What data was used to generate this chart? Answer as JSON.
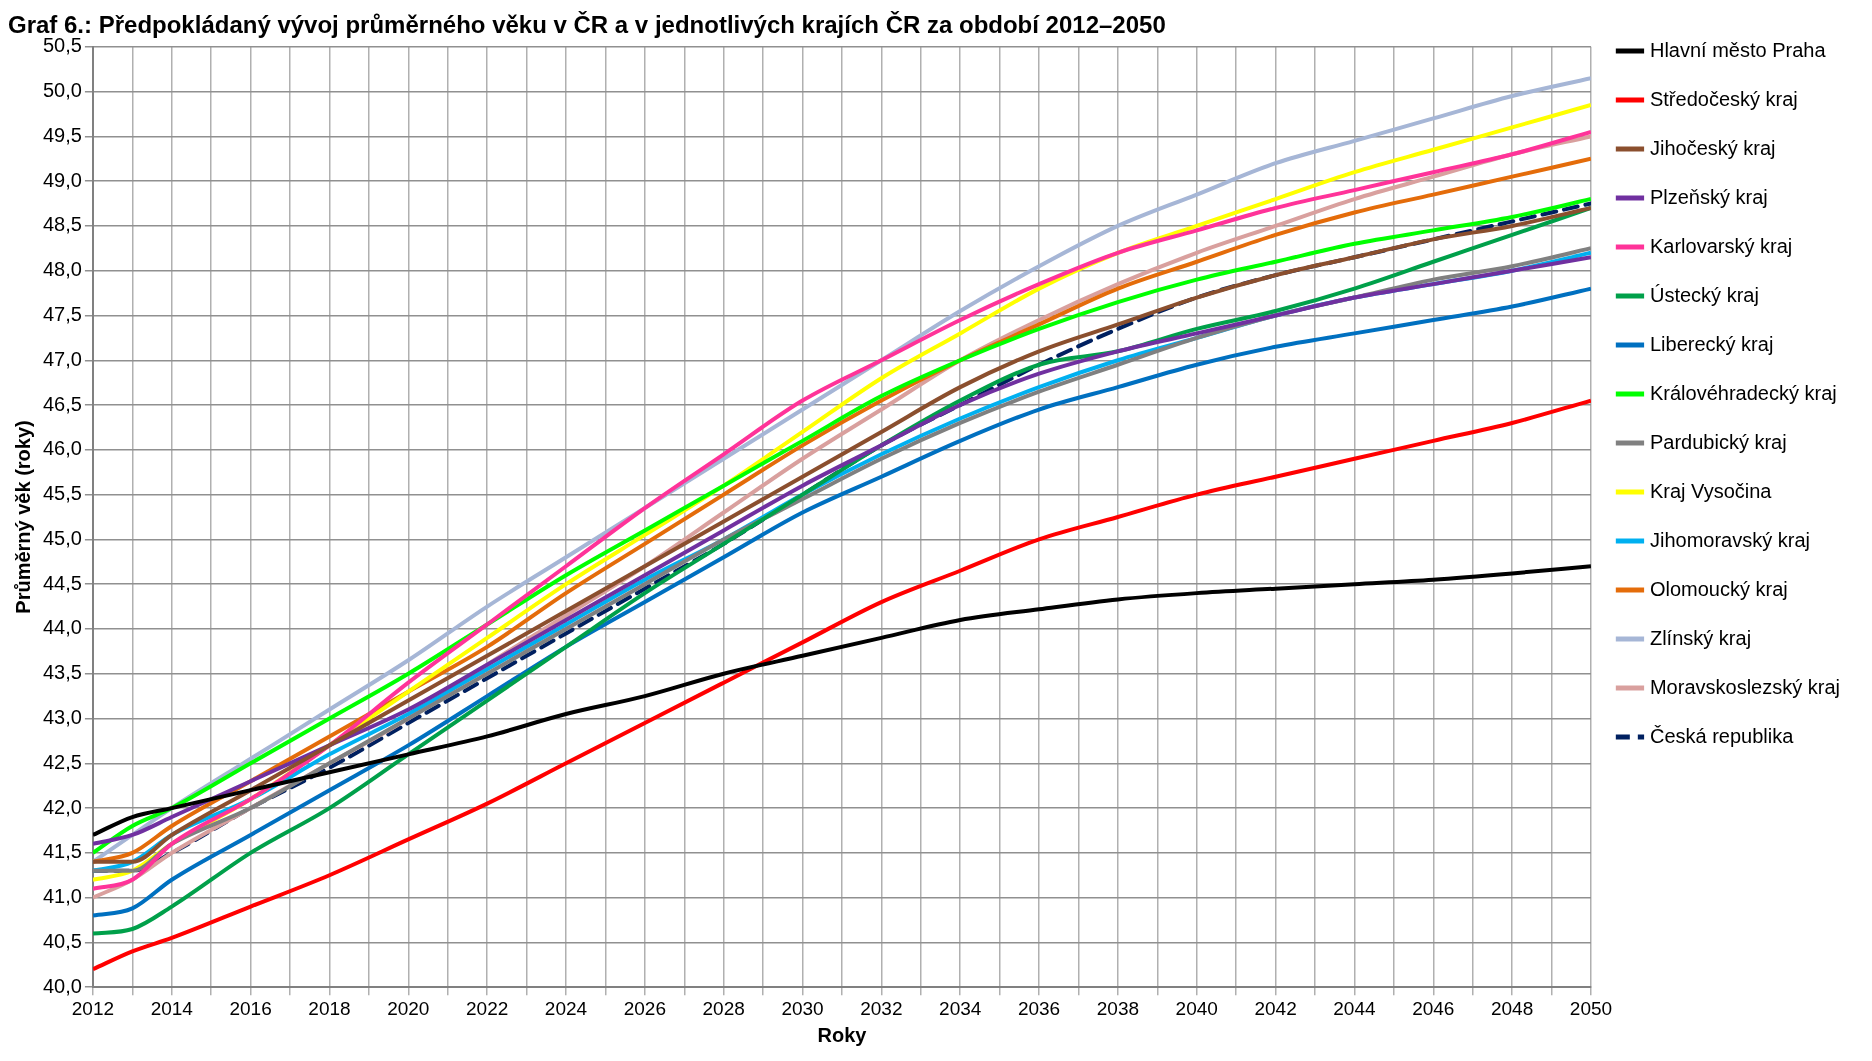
{
  "chart_data": {
    "type": "line",
    "title": "Graf 6.: Předpokládaný vývoj průměrného věku v ČR a v jednotlivých krajích ČR za období 2012–2050",
    "xlabel": "Roky",
    "ylabel": "Průměrný věk (roky)",
    "x": [
      2012,
      2013,
      2014,
      2016,
      2018,
      2020,
      2022,
      2024,
      2026,
      2028,
      2030,
      2032,
      2034,
      2036,
      2038,
      2040,
      2042,
      2044,
      2046,
      2048,
      2050
    ],
    "xlim": [
      2012,
      2050
    ],
    "xticks": [
      2012,
      {
        "value": 2013,
        "label": null
      },
      2014,
      {
        "value": 2015,
        "label": null
      },
      2016,
      {
        "value": 2017,
        "label": null
      },
      2018,
      {
        "value": 2019,
        "label": null
      },
      2020,
      {
        "value": 2021,
        "label": null
      },
      2022,
      {
        "value": 2023,
        "label": null
      },
      2024,
      {
        "value": 2025,
        "label": null
      },
      2026,
      {
        "value": 2027,
        "label": null
      },
      2028,
      {
        "value": 2029,
        "label": null
      },
      2030,
      {
        "value": 2031,
        "label": null
      },
      2032,
      {
        "value": 2033,
        "label": null
      },
      2034,
      {
        "value": 2035,
        "label": null
      },
      2036,
      {
        "value": 2037,
        "label": null
      },
      2038,
      {
        "value": 2039,
        "label": null
      },
      2040,
      {
        "value": 2041,
        "label": null
      },
      2042,
      {
        "value": 2043,
        "label": null
      },
      2044,
      {
        "value": 2045,
        "label": null
      },
      2046,
      {
        "value": 2047,
        "label": null
      },
      2048,
      {
        "value": 2049,
        "label": null
      },
      2050
    ],
    "ylim": [
      40,
      50.5
    ],
    "yticks": [
      {
        "value": 40,
        "label": "40,0"
      },
      {
        "value": 40.5,
        "label": "40,5"
      },
      {
        "value": 41,
        "label": "41,0"
      },
      {
        "value": 41.5,
        "label": "41,5"
      },
      {
        "value": 42,
        "label": "42,0"
      },
      {
        "value": 42.5,
        "label": "42,5"
      },
      {
        "value": 43,
        "label": "43,0"
      },
      {
        "value": 43.5,
        "label": "43,5"
      },
      {
        "value": 44,
        "label": "44,0"
      },
      {
        "value": 44.5,
        "label": "44,5"
      },
      {
        "value": 45,
        "label": "45,0"
      },
      {
        "value": 45.5,
        "label": "45,5"
      },
      {
        "value": 46,
        "label": "46,0"
      },
      {
        "value": 46.5,
        "label": "46,5"
      },
      {
        "value": 47,
        "label": "47,0"
      },
      {
        "value": 47.5,
        "label": "47,5"
      },
      {
        "value": 48,
        "label": "48,0"
      },
      {
        "value": 48.5,
        "label": "48,5"
      },
      {
        "value": 49,
        "label": "49,0"
      },
      {
        "value": 49.5,
        "label": "49,5"
      },
      {
        "value": 50,
        "label": "50,0"
      },
      {
        "value": 50.5,
        "label": "50,5"
      }
    ],
    "grid": true,
    "legend": "right",
    "marker": "none",
    "line_style": "solid",
    "series": [
      {
        "name": "Hlavní město Praha",
        "color": "#000000",
        "values": [
          41.7,
          41.9,
          42.0,
          42.2,
          42.4,
          42.6,
          42.8,
          43.05,
          43.25,
          43.5,
          43.7,
          43.9,
          44.1,
          44.22,
          44.33,
          44.4,
          44.45,
          44.5,
          44.55,
          44.62,
          44.7
        ]
      },
      {
        "name": "Středočeský kraj",
        "color": "#ff0000",
        "values": [
          40.2,
          40.4,
          40.55,
          40.9,
          41.25,
          41.65,
          42.05,
          42.5,
          42.95,
          43.4,
          43.85,
          44.3,
          44.65,
          45.0,
          45.25,
          45.5,
          45.7,
          45.9,
          46.1,
          46.3,
          46.55
        ]
      },
      {
        "name": "Jihočeský kraj",
        "color": "#8b4f2e",
        "values": [
          41.4,
          41.4,
          41.7,
          42.2,
          42.7,
          43.2,
          43.7,
          44.2,
          44.7,
          45.2,
          45.7,
          46.2,
          46.7,
          47.1,
          47.4,
          47.7,
          47.95,
          48.15,
          48.35,
          48.5,
          48.7
        ]
      },
      {
        "name": "Plzeňský kraj",
        "color": "#7030a0",
        "values": [
          41.6,
          41.7,
          41.9,
          42.3,
          42.7,
          43.1,
          43.6,
          44.1,
          44.6,
          45.1,
          45.6,
          46.05,
          46.5,
          46.85,
          47.1,
          47.3,
          47.5,
          47.7,
          47.85,
          48.0,
          48.15
        ]
      },
      {
        "name": "Karlovarský kraj",
        "color": "#ff3399",
        "values": [
          41.1,
          41.2,
          41.6,
          42.1,
          42.7,
          43.4,
          44.05,
          44.7,
          45.35,
          45.95,
          46.55,
          47.0,
          47.45,
          47.85,
          48.2,
          48.45,
          48.7,
          48.9,
          49.1,
          49.3,
          49.55
        ]
      },
      {
        "name": "Ústecký kraj",
        "color": "#00a04a",
        "values": [
          40.6,
          40.65,
          40.9,
          41.5,
          42.0,
          42.6,
          43.2,
          43.8,
          44.4,
          44.95,
          45.5,
          46.05,
          46.55,
          46.95,
          47.1,
          47.35,
          47.55,
          47.8,
          48.1,
          48.4,
          48.7
        ]
      },
      {
        "name": "Liberecký kraj",
        "color": "#0070c0",
        "values": [
          40.8,
          40.88,
          41.2,
          41.7,
          42.2,
          42.7,
          43.25,
          43.8,
          44.3,
          44.8,
          45.3,
          45.7,
          46.1,
          46.45,
          46.7,
          46.95,
          47.15,
          47.3,
          47.45,
          47.6,
          47.8
        ]
      },
      {
        "name": "Královéhradecký kraj",
        "color": "#00ff00",
        "values": [
          41.5,
          41.8,
          42.0,
          42.5,
          43.0,
          43.5,
          44.05,
          44.6,
          45.1,
          45.6,
          46.1,
          46.6,
          47.0,
          47.35,
          47.65,
          47.9,
          48.1,
          48.3,
          48.45,
          48.6,
          48.8
        ]
      },
      {
        "name": "Pardubický kraj",
        "color": "#808080",
        "values": [
          41.3,
          41.3,
          41.6,
          42.0,
          42.5,
          43.0,
          43.5,
          44.0,
          44.5,
          45.0,
          45.45,
          45.9,
          46.3,
          46.65,
          46.95,
          47.25,
          47.5,
          47.7,
          47.9,
          48.05,
          48.25
        ]
      },
      {
        "name": "Kraj Vysočina",
        "color": "#ffff00",
        "values": [
          41.2,
          41.3,
          41.6,
          42.1,
          42.7,
          43.3,
          43.9,
          44.5,
          45.05,
          45.6,
          46.2,
          46.8,
          47.3,
          47.8,
          48.2,
          48.5,
          48.8,
          49.1,
          49.35,
          49.6,
          49.85
        ]
      },
      {
        "name": "Jihomoravský kraj",
        "color": "#00b0f0",
        "values": [
          41.3,
          41.4,
          41.7,
          42.1,
          42.6,
          43.05,
          43.55,
          44.05,
          44.55,
          45.0,
          45.5,
          45.95,
          46.35,
          46.7,
          47.0,
          47.25,
          47.5,
          47.7,
          47.85,
          48.0,
          48.2
        ]
      },
      {
        "name": "Olomoucký kraj",
        "color": "#e46c0a",
        "values": [
          41.4,
          41.5,
          41.8,
          42.3,
          42.8,
          43.3,
          43.8,
          44.4,
          44.95,
          45.5,
          46.05,
          46.55,
          47.0,
          47.4,
          47.8,
          48.1,
          48.4,
          48.65,
          48.85,
          49.05,
          49.25
        ]
      },
      {
        "name": "Zlínský kraj",
        "color": "#a6b6d6",
        "values": [
          41.4,
          41.7,
          42.0,
          42.55,
          43.1,
          43.65,
          44.25,
          44.8,
          45.35,
          45.9,
          46.45,
          47.0,
          47.55,
          48.05,
          48.5,
          48.85,
          49.2,
          49.45,
          49.7,
          49.95,
          50.15
        ]
      },
      {
        "name": "Moravskoslezský kraj",
        "color": "#d9a09e",
        "values": [
          41.0,
          41.2,
          41.5,
          42.0,
          42.5,
          43.0,
          43.6,
          44.15,
          44.7,
          45.3,
          45.9,
          46.45,
          47.0,
          47.45,
          47.85,
          48.2,
          48.5,
          48.8,
          49.05,
          49.3,
          49.5
        ]
      },
      {
        "name": "Česká republika",
        "color": "#002060",
        "line_style": "dashed",
        "values": [
          41.3,
          41.3,
          41.5,
          42.0,
          42.45,
          42.95,
          43.45,
          43.95,
          44.45,
          44.95,
          45.5,
          46.05,
          46.5,
          46.95,
          47.35,
          47.7,
          47.95,
          48.15,
          48.35,
          48.55,
          48.75
        ]
      }
    ]
  }
}
